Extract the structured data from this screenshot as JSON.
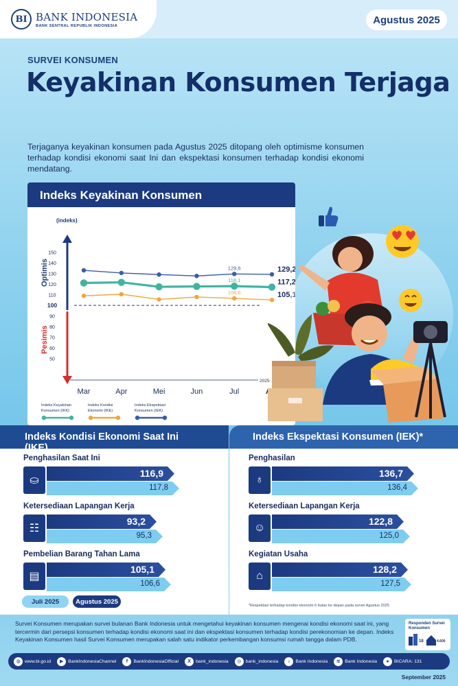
{
  "header": {
    "logo_mark": "BI",
    "logo_title": "BANK INDONESIA",
    "logo_subtitle": "BANK SENTRAL REPUBLIK INDONESIA",
    "date": "Agustus 2025"
  },
  "hero": {
    "kicker": "SURVEI KONSUMEN",
    "headline": "Keyakinan Konsumen Terjaga",
    "intro": "Terjaganya keyakinan konsumen pada Agustus 2025 ditopang oleh optimisme konsumen terhadap kondisi ekonomi saat Ini dan ekspektasi konsumen terhadap kondisi ekonomi mendatang."
  },
  "chart_data": {
    "type": "line",
    "title": "Indeks Keyakinan Konsumen",
    "unit_label": "(indeks)",
    "year_label": "2025",
    "optimis_label": "Optimis",
    "pesimis_label": "Pesimis",
    "categories": [
      "Mar",
      "Apr",
      "Mei",
      "Jun",
      "Jul",
      "Agt"
    ],
    "ylim": [
      40,
      155
    ],
    "yticks": [
      150,
      140,
      130,
      120,
      110,
      100,
      90,
      80,
      70,
      60,
      50
    ],
    "threshold": 100,
    "series": [
      {
        "name": "Indeks Ekspektasi Konsumen (IEK)",
        "color": "#3b5ca8",
        "values": [
          133.0,
          130.5,
          129.0,
          127.7,
          129.6,
          129.2
        ],
        "jul_label": "129,6",
        "agt_label": "129,2"
      },
      {
        "name": "Indeks Keyakinan Konsumen (IKK)",
        "color": "#3fb5a0",
        "values": [
          121.1,
          121.7,
          117.5,
          117.8,
          118.1,
          117.2
        ],
        "jul_label": "118,1",
        "agt_label": "117,2"
      },
      {
        "name": "Indeks Kondisi Ekonomi (IKE)",
        "color": "#f0a73a",
        "values": [
          109.0,
          110.5,
          105.6,
          107.9,
          106.6,
          105.1
        ],
        "jul_label": "106,6",
        "agt_label": "105,1"
      }
    ],
    "legend": [
      "Indeks Keyakinan Konsumen (IKK)",
      "Indeks Kondisi Ekonomi (IKE)",
      "Indeks Ekspektasi Konsumen (IEK)"
    ]
  },
  "ike": {
    "title": "Indeks Kondisi Ekonomi Saat Ini (IKE)",
    "items": [
      {
        "label": "Penghasilan Saat Ini",
        "current": "116,9",
        "previous": "117,8",
        "cur_val": 116.9,
        "prev_val": 117.8,
        "icon": "money-hand-icon"
      },
      {
        "label": "Ketersediaan Lapangan Kerja",
        "current": "93,2",
        "previous": "95,3",
        "cur_val": 93.2,
        "prev_val": 95.3,
        "icon": "job-board-icon"
      },
      {
        "label": "Pembelian Barang Tahan Lama",
        "current": "105,1",
        "previous": "106,6",
        "cur_val": 105.1,
        "prev_val": 106.6,
        "icon": "appliance-icon"
      }
    ]
  },
  "iek": {
    "title": "Indeks Ekspektasi Konsumen (IEK)*",
    "footnote": "*Ekspektasi terhadap kondisi ekonomi 6 bulan ke depan pada survei Agustus 2025",
    "items": [
      {
        "label": "Penghasilan",
        "current": "136,7",
        "previous": "136,4",
        "cur_val": 136.7,
        "prev_val": 136.4,
        "icon": "money-bag-icon"
      },
      {
        "label": "Ketersediaan Lapangan Kerja",
        "current": "122,8",
        "previous": "125,0",
        "cur_val": 122.8,
        "prev_val": 125.0,
        "icon": "worker-icon"
      },
      {
        "label": "Kegiatan Usaha",
        "current": "128,2",
        "previous": "127,5",
        "cur_val": 128.2,
        "prev_val": 127.5,
        "icon": "store-icon"
      }
    ]
  },
  "legend_chips": {
    "previous": "Juli 2025",
    "current": "Agustus 2025"
  },
  "about": "Survei Konsumen merupakan survei bulanan Bank Indonesia untuk mengetahui keyakinan konsumen mengenai kondisi ekonomi saat ini, yang tercermin dari persepsi konsumen terhadap kondisi ekonomi saat ini dan ekspektasi konsumen terhadap kondisi perekonomian ke depan. Indeks Keyakinan Konsumen hasil Survei Konsumen merupakan salah satu indikator perkembangan konsumsi rumah tangga dalam PDB.",
  "respondents": {
    "title": "Responden Survei Konsumen",
    "cities": "18",
    "households": "4.600"
  },
  "social": [
    {
      "icon": "globe-icon",
      "glyph": "◍",
      "label": "www.bi.go.id"
    },
    {
      "icon": "youtube-icon",
      "glyph": "▶",
      "label": "BankIndonesiaChannel"
    },
    {
      "icon": "facebook-icon",
      "glyph": "f",
      "label": "BankIndonesiaOfficial"
    },
    {
      "icon": "x-icon",
      "glyph": "X",
      "label": "bank_indonesia"
    },
    {
      "icon": "instagram-icon",
      "glyph": "◎",
      "label": "bank_indonesia"
    },
    {
      "icon": "tiktok-icon",
      "glyph": "♪",
      "label": "Bank Indonesia"
    },
    {
      "icon": "spotify-icon",
      "glyph": "≋",
      "label": "Bank Indonesia"
    },
    {
      "icon": "bicara-icon",
      "glyph": "●",
      "label": "BICARA: 131"
    }
  ],
  "release": "September 2025"
}
